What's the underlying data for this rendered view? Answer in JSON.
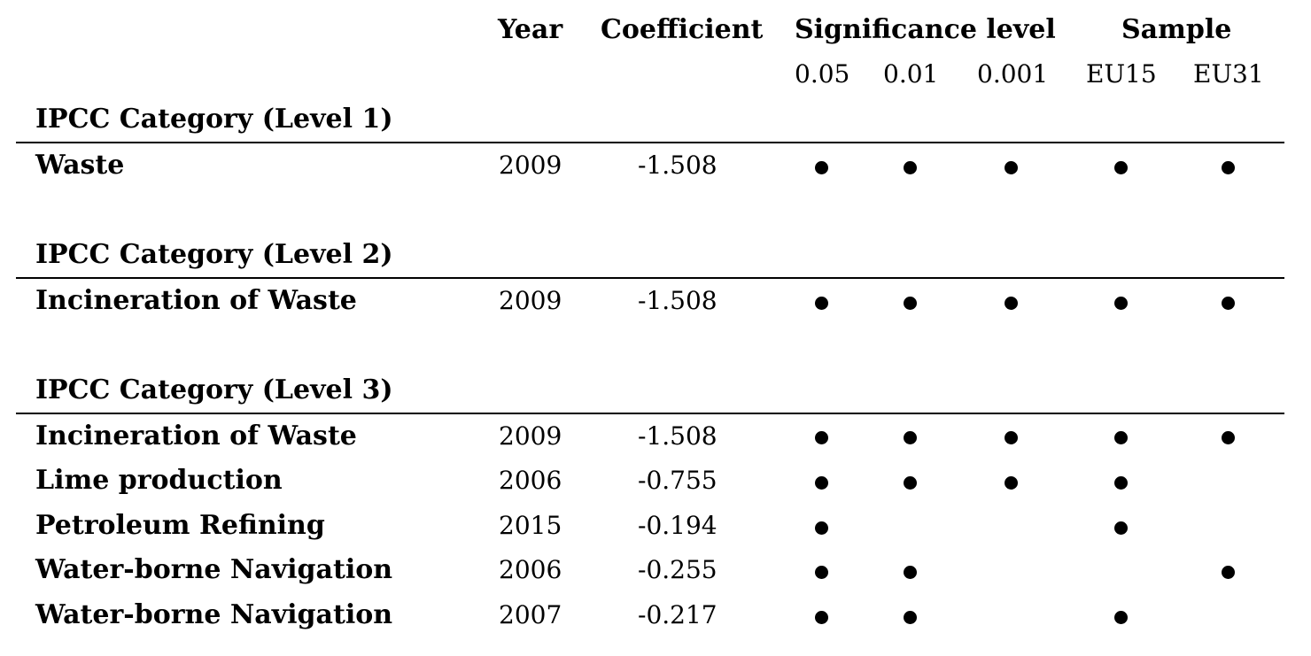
{
  "header": {
    "year": "Year",
    "coefficient": "Coefficient",
    "significance": "Significance level",
    "sample": "Sample",
    "sig_levels": [
      "0.05",
      "0.01",
      "0.001"
    ],
    "samples": [
      "EU15",
      "EU31"
    ]
  },
  "sections": [
    {
      "title": "IPCC Category (Level 1)",
      "rows": [
        {
          "name": "Waste",
          "year": "2009",
          "coef": "-1.508",
          "marks": [
            true,
            true,
            true,
            true,
            true
          ]
        }
      ]
    },
    {
      "title": "IPCC Category (Level 2)",
      "rows": [
        {
          "name": "Incineration of Waste",
          "year": "2009",
          "coef": "-1.508",
          "marks": [
            true,
            true,
            true,
            true,
            true
          ]
        }
      ]
    },
    {
      "title": "IPCC Category (Level 3)",
      "rows": [
        {
          "name": "Incineration of Waste",
          "year": "2009",
          "coef": "-1.508",
          "marks": [
            true,
            true,
            true,
            true,
            true
          ]
        },
        {
          "name": "Lime production",
          "year": "2006",
          "coef": "-0.755",
          "marks": [
            true,
            true,
            true,
            true,
            false
          ]
        },
        {
          "name": "Petroleum Refining",
          "year": "2015",
          "coef": "-0.194",
          "marks": [
            true,
            false,
            false,
            true,
            false
          ]
        },
        {
          "name": "Water-borne Navigation",
          "year": "2006",
          "coef": "-0.255",
          "marks": [
            true,
            true,
            false,
            false,
            true
          ]
        },
        {
          "name": "Water-borne Navigation",
          "year": "2007",
          "coef": "-0.217",
          "marks": [
            true,
            true,
            false,
            true,
            false
          ]
        }
      ]
    }
  ]
}
